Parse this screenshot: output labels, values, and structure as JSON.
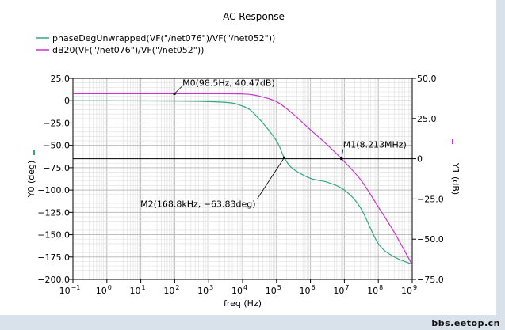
{
  "chart_data": {
    "type": "line",
    "title": "AC Response",
    "xlabel": "freq (Hz)",
    "xscale": "log",
    "xlim": [
      0.1,
      1000000000
    ],
    "x_tick_labels": [
      "10",
      "10",
      "10",
      "10",
      "10",
      "10",
      "10",
      "10",
      "10",
      "10",
      "10"
    ],
    "x_tick_exponents": [
      "−1",
      "0",
      "1",
      "2",
      "3",
      "4",
      "5",
      "6",
      "7",
      "8",
      "9"
    ],
    "y0_label": "Y0 (deg)",
    "y0_lim": [
      -200,
      25
    ],
    "y0_ticks": [
      "25.0",
      "0",
      "−25.0",
      "−50.0",
      "−75.0",
      "−100.0",
      "−125.0",
      "−150.0",
      "−175.0",
      "−200.0"
    ],
    "y1_label": "Y1 (dB)",
    "y1_lim": [
      -75,
      50
    ],
    "y1_ticks": [
      "50.0",
      "25.0",
      "0",
      "−25.0",
      "−50.0",
      "−75.0"
    ],
    "grid": true,
    "legend_position": "top-left",
    "series": [
      {
        "name": "phaseDegUnwrapped(VF(\"/net076\")/VF(\"/net052\"))",
        "axis": "y0",
        "color": "#2eaa7d",
        "x": [
          0.1,
          1000,
          10000,
          30000,
          100000,
          168800,
          300000,
          1000000,
          3000000,
          10000000,
          30000000,
          100000000,
          300000000,
          1000000000
        ],
        "y": [
          0,
          -1,
          -6,
          -20,
          -45,
          -63.83,
          -76,
          -87,
          -91,
          -100,
          -120,
          -160,
          -175,
          -183
        ]
      },
      {
        "name": "dB20(VF(\"/net076\")/VF(\"/net052\"))",
        "axis": "y1",
        "color": "#cc33cc",
        "x": [
          0.1,
          98.5,
          1000,
          10000,
          30000,
          100000,
          300000,
          1000000,
          3000000,
          8213000,
          30000000,
          100000000,
          300000000,
          1000000000
        ],
        "y": [
          40.47,
          40.47,
          40.47,
          40.3,
          39,
          35.5,
          28,
          18,
          9,
          0,
          -13,
          -30,
          -46,
          -66
        ]
      }
    ],
    "markers": [
      {
        "label": "M0(98.5Hz, 40.47dB)",
        "x": 98.5,
        "y": 40.47,
        "axis": "y1"
      },
      {
        "label": "M1(8.213MHz)",
        "x": 8213000,
        "y": 0,
        "axis": "y1"
      },
      {
        "label": "M2(168.8kHz, −63.83deg)",
        "x": 168800,
        "y": -63.83,
        "axis": "y0"
      }
    ]
  },
  "watermark": "bbs.eetop.cn"
}
